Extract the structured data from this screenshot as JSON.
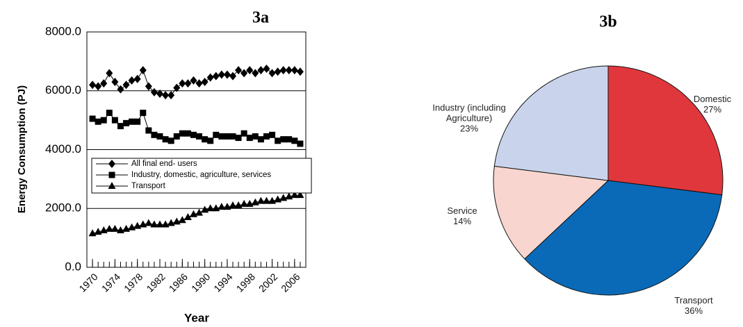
{
  "chart_data": [
    {
      "type": "line",
      "title": "3a",
      "xlabel": "Year",
      "ylabel": "Energy Consumption (PJ)",
      "x": [
        1970,
        1971,
        1972,
        1973,
        1974,
        1975,
        1976,
        1977,
        1978,
        1979,
        1980,
        1981,
        1982,
        1983,
        1984,
        1985,
        1986,
        1987,
        1988,
        1989,
        1990,
        1991,
        1992,
        1993,
        1994,
        1995,
        1996,
        1997,
        1998,
        1999,
        2000,
        2001,
        2002,
        2003,
        2004,
        2005,
        2006,
        2007
      ],
      "xlim": [
        1969,
        2008
      ],
      "xticks": [
        1970,
        1974,
        1978,
        1982,
        1986,
        1990,
        1994,
        1998,
        2002,
        2006
      ],
      "ylim": [
        0,
        8000
      ],
      "yticks": [
        {
          "value": 0,
          "label": "0.0"
        },
        {
          "value": 2000,
          "label": "2000.0"
        },
        {
          "value": 4000,
          "label": "4000.0"
        },
        {
          "value": 6000,
          "label": "6000.0"
        },
        {
          "value": 8000,
          "label": "8000.0"
        }
      ],
      "grid": true,
      "series": [
        {
          "name": "All final end- users",
          "color": "#000000",
          "marker": "diamond",
          "values": [
            6200,
            6150,
            6250,
            6600,
            6300,
            6050,
            6200,
            6350,
            6400,
            6700,
            6150,
            5950,
            5900,
            5850,
            5850,
            6100,
            6250,
            6250,
            6350,
            6250,
            6300,
            6450,
            6500,
            6550,
            6550,
            6500,
            6700,
            6600,
            6700,
            6600,
            6700,
            6750,
            6600,
            6650,
            6700,
            6700,
            6700,
            6650
          ]
        },
        {
          "name": "Industry, domestic, agriculture, services",
          "color": "#000000",
          "marker": "square",
          "values": [
            5050,
            4950,
            5000,
            5250,
            5000,
            4800,
            4900,
            4950,
            4950,
            5250,
            4650,
            4500,
            4450,
            4350,
            4300,
            4450,
            4550,
            4550,
            4500,
            4450,
            4350,
            4300,
            4500,
            4450,
            4450,
            4450,
            4400,
            4550,
            4400,
            4450,
            4350,
            4450,
            4500,
            4300,
            4350,
            4350,
            4300,
            4200
          ]
        },
        {
          "name": "Transport",
          "color": "#000000",
          "marker": "triangle",
          "values": [
            1150,
            1200,
            1250,
            1300,
            1300,
            1250,
            1300,
            1350,
            1400,
            1450,
            1500,
            1450,
            1450,
            1450,
            1500,
            1550,
            1600,
            1700,
            1800,
            1850,
            1950,
            2000,
            2000,
            2050,
            2050,
            2100,
            2100,
            2150,
            2150,
            2200,
            2250,
            2250,
            2250,
            2300,
            2350,
            2400,
            2450,
            2450
          ]
        }
      ]
    },
    {
      "type": "pie",
      "title": "3b",
      "categories": [
        "Domestic",
        "Transport",
        "Service",
        "Industry (including Agriculture)"
      ],
      "values": [
        27,
        36,
        14,
        23
      ],
      "value_labels": [
        "27%",
        "36%",
        "14%",
        "23%"
      ],
      "colors": [
        "#e0373c",
        "#0a6ab8",
        "#f8d6cf",
        "#c9d4ec"
      ]
    }
  ]
}
